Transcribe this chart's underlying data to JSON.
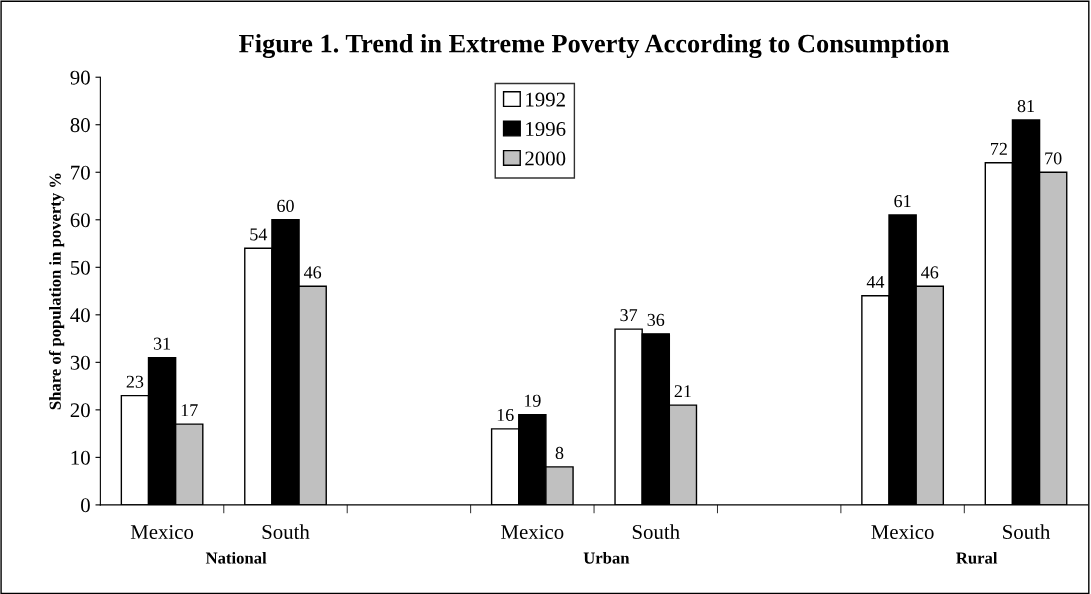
{
  "chart_data": {
    "type": "bar",
    "title": "Figure 1. Trend in Extreme Poverty According to Consumption",
    "ylabel": "Share of population in poverty %",
    "categories": [
      "Mexico",
      "South",
      null,
      "Mexico",
      "South",
      null,
      "Mexico",
      "South"
    ],
    "series": [
      {
        "name": "1992",
        "color": "#ffffff",
        "values": [
          23,
          54,
          null,
          16,
          37,
          null,
          44,
          72
        ]
      },
      {
        "name": "1996",
        "color": "#000000",
        "values": [
          31,
          60,
          null,
          19,
          36,
          null,
          61,
          81
        ]
      },
      {
        "name": "2000",
        "color": "#c0c0c0",
        "values": [
          17,
          46,
          null,
          8,
          21,
          null,
          46,
          70
        ]
      }
    ],
    "ylim": [
      0,
      90
    ],
    "yticks": [
      0,
      10,
      20,
      30,
      40,
      50,
      60,
      70,
      80,
      90
    ],
    "grid": false,
    "legend": "top",
    "data_labels": true,
    "annotations": [
      "National",
      "Urban",
      "Rural"
    ]
  }
}
